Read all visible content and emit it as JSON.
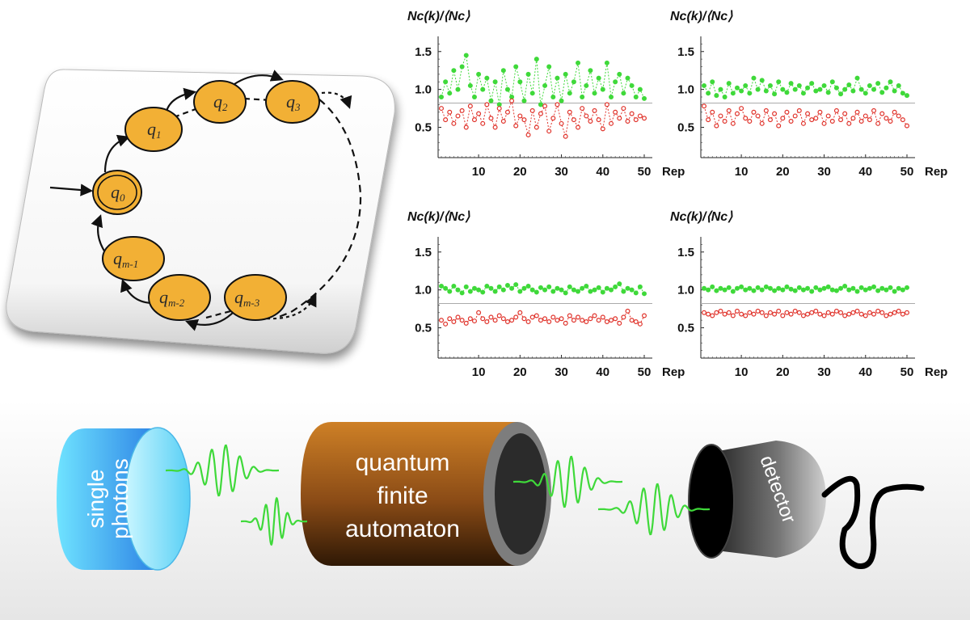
{
  "automaton": {
    "states": [
      {
        "id": "q0",
        "base": "q",
        "sub": "0",
        "accepting": true
      },
      {
        "id": "q1",
        "base": "q",
        "sub": "1"
      },
      {
        "id": "q2",
        "base": "q",
        "sub": "2"
      },
      {
        "id": "q3",
        "base": "q",
        "sub": "3"
      },
      {
        "id": "qm1",
        "base": "q",
        "sub": "m-1"
      },
      {
        "id": "qm2",
        "base": "q",
        "sub": "m-2"
      },
      {
        "id": "qm3",
        "base": "q",
        "sub": "m-3"
      }
    ]
  },
  "setup": {
    "source_label_1": "single",
    "source_label_2": "photons",
    "qfa_line_1": "quantum",
    "qfa_line_2": "finite",
    "qfa_line_3": "automaton",
    "detector_label": "detector"
  },
  "colors": {
    "state_fill": "#f2b035",
    "green_series": "#3fd93a",
    "red_series": "#e0332b",
    "source": "#3fb0ee",
    "qfa_body": "#9a5a1c",
    "threshold": "#aaaaaa"
  },
  "chart_data": [
    {
      "type": "scatter",
      "ylabel": "Nc(k)/⟨Nc⟩",
      "xlabel": "Rep",
      "ylim": [
        0.1,
        1.7
      ],
      "yticks": [
        "1.5",
        "1.0",
        "0.5"
      ],
      "xticks": [
        "10",
        "20",
        "30",
        "40",
        "50"
      ],
      "threshold": 0.82,
      "series": [
        {
          "values": [
            0.9,
            1.1,
            0.95,
            1.25,
            1.0,
            1.3,
            1.45,
            1.05,
            0.9,
            1.2,
            1.0,
            1.15,
            0.85,
            1.1,
            0.8,
            1.25,
            1.0,
            0.9,
            1.3,
            1.1,
            0.85,
            1.2,
            0.95,
            1.4,
            0.8,
            1.05,
            1.3,
            0.9,
            1.15,
            0.85,
            1.2,
            0.95,
            1.1,
            1.35,
            0.9,
            1.05,
            1.25,
            0.95,
            1.15,
            1.0,
            1.35,
            0.9,
            1.1,
            1.2,
            0.95,
            1.15,
            1.05,
            0.9,
            1.0,
            0.88
          ],
          "color": "#3fd93a"
        },
        {
          "values": [
            0.75,
            0.6,
            0.7,
            0.55,
            0.65,
            0.72,
            0.5,
            0.78,
            0.6,
            0.68,
            0.55,
            0.8,
            0.62,
            0.5,
            0.75,
            0.58,
            0.7,
            0.85,
            0.52,
            0.65,
            0.6,
            0.4,
            0.72,
            0.5,
            0.68,
            0.78,
            0.45,
            0.62,
            0.8,
            0.55,
            0.38,
            0.7,
            0.6,
            0.5,
            0.75,
            0.65,
            0.58,
            0.72,
            0.6,
            0.48,
            0.8,
            0.55,
            0.7,
            0.62,
            0.75,
            0.58,
            0.68,
            0.6,
            0.65,
            0.62
          ],
          "color": "#e0332b"
        }
      ]
    },
    {
      "type": "scatter",
      "ylabel": "Nc(k)/⟨Nc⟩",
      "xlabel": "Rep",
      "ylim": [
        0.1,
        1.7
      ],
      "yticks": [
        "1.5",
        "1.0",
        "0.5"
      ],
      "xticks": [
        "10",
        "20",
        "30",
        "40",
        "50"
      ],
      "threshold": 0.82,
      "series": [
        {
          "values": [
            1.05,
            0.95,
            1.1,
            0.92,
            1.0,
            0.9,
            1.08,
            0.95,
            1.02,
            0.98,
            1.05,
            0.95,
            1.15,
            1.0,
            1.12,
            0.98,
            1.05,
            0.94,
            1.1,
            1.0,
            0.96,
            1.08,
            1.0,
            1.05,
            0.95,
            1.02,
            1.08,
            0.98,
            1.0,
            1.05,
            0.96,
            1.1,
            1.02,
            0.94,
            1.0,
            1.06,
            0.98,
            1.15,
            1.0,
            0.95,
            1.05,
            1.0,
            1.08,
            0.96,
            1.02,
            1.1,
            0.98,
            1.05,
            0.95,
            0.92
          ],
          "color": "#3fd93a"
        },
        {
          "values": [
            0.78,
            0.6,
            0.7,
            0.52,
            0.65,
            0.58,
            0.72,
            0.55,
            0.68,
            0.75,
            0.62,
            0.58,
            0.7,
            0.65,
            0.55,
            0.72,
            0.6,
            0.68,
            0.52,
            0.62,
            0.7,
            0.58,
            0.65,
            0.72,
            0.55,
            0.68,
            0.6,
            0.62,
            0.7,
            0.55,
            0.65,
            0.58,
            0.72,
            0.6,
            0.68,
            0.55,
            0.62,
            0.7,
            0.58,
            0.65,
            0.6,
            0.72,
            0.55,
            0.68,
            0.62,
            0.58,
            0.7,
            0.65,
            0.6,
            0.52
          ],
          "color": "#e0332b"
        }
      ]
    },
    {
      "type": "scatter",
      "ylabel": "Nc(k)/⟨Nc⟩",
      "xlabel": "Rep",
      "ylim": [
        0.1,
        1.7
      ],
      "yticks": [
        "1.5",
        "1.0",
        "0.5"
      ],
      "xticks": [
        "10",
        "20",
        "30",
        "40",
        "50"
      ],
      "threshold": 0.82,
      "series": [
        {
          "values": [
            1.05,
            1.02,
            0.98,
            1.05,
            1.0,
            0.96,
            1.04,
            0.98,
            1.02,
            1.0,
            0.97,
            1.05,
            1.02,
            0.98,
            1.04,
            1.0,
            1.06,
            1.02,
            1.07,
            0.98,
            1.02,
            1.05,
            1.0,
            0.97,
            1.03,
            1.0,
            1.04,
            0.98,
            1.02,
            1.0,
            0.96,
            1.04,
            1.0,
            0.98,
            1.02,
            1.05,
            0.98,
            1.0,
            1.03,
            0.97,
            1.02,
            1.0,
            1.04,
            1.08,
            0.98,
            1.02,
            1.0,
            0.96,
            1.04,
            0.95
          ],
          "color": "#3fd93a"
        },
        {
          "values": [
            0.6,
            0.55,
            0.62,
            0.58,
            0.64,
            0.6,
            0.56,
            0.62,
            0.59,
            0.7,
            0.62,
            0.58,
            0.64,
            0.6,
            0.66,
            0.62,
            0.58,
            0.6,
            0.64,
            0.7,
            0.62,
            0.58,
            0.64,
            0.66,
            0.6,
            0.62,
            0.58,
            0.64,
            0.6,
            0.62,
            0.56,
            0.66,
            0.6,
            0.64,
            0.6,
            0.58,
            0.62,
            0.66,
            0.6,
            0.64,
            0.58,
            0.6,
            0.62,
            0.56,
            0.64,
            0.72,
            0.6,
            0.58,
            0.55,
            0.66
          ],
          "color": "#e0332b"
        }
      ]
    },
    {
      "type": "scatter",
      "ylabel": "Nc(k)/⟨Nc⟩",
      "xlabel": "Rep",
      "ylim": [
        0.1,
        1.7
      ],
      "yticks": [
        "1.5",
        "1.0",
        "0.5"
      ],
      "xticks": [
        "10",
        "20",
        "30",
        "40",
        "50"
      ],
      "threshold": 0.82,
      "series": [
        {
          "values": [
            1.02,
            1.0,
            1.04,
            0.99,
            1.02,
            1.0,
            1.03,
            0.98,
            1.02,
            1.04,
            1.0,
            1.02,
            0.99,
            1.03,
            1.0,
            1.04,
            1.02,
            0.99,
            1.02,
            1.0,
            1.04,
            1.01,
            0.99,
            1.03,
            1.0,
            1.02,
            0.98,
            1.03,
            1.0,
            1.02,
            1.04,
            1.0,
            0.99,
            1.02,
            1.05,
            1.0,
            1.02,
            0.98,
            1.03,
            1.0,
            1.02,
            1.04,
            0.99,
            1.02,
            1.0,
            1.03,
            0.98,
            1.02,
            1.0,
            1.03
          ],
          "color": "#3fd93a"
        },
        {
          "values": [
            0.7,
            0.68,
            0.66,
            0.7,
            0.72,
            0.68,
            0.7,
            0.66,
            0.72,
            0.68,
            0.66,
            0.7,
            0.68,
            0.72,
            0.7,
            0.66,
            0.7,
            0.68,
            0.72,
            0.66,
            0.7,
            0.68,
            0.72,
            0.7,
            0.66,
            0.68,
            0.7,
            0.72,
            0.68,
            0.66,
            0.7,
            0.68,
            0.72,
            0.7,
            0.66,
            0.68,
            0.7,
            0.72,
            0.68,
            0.66,
            0.7,
            0.68,
            0.72,
            0.7,
            0.66,
            0.68,
            0.7,
            0.72,
            0.68,
            0.7
          ],
          "color": "#e0332b"
        }
      ]
    }
  ]
}
